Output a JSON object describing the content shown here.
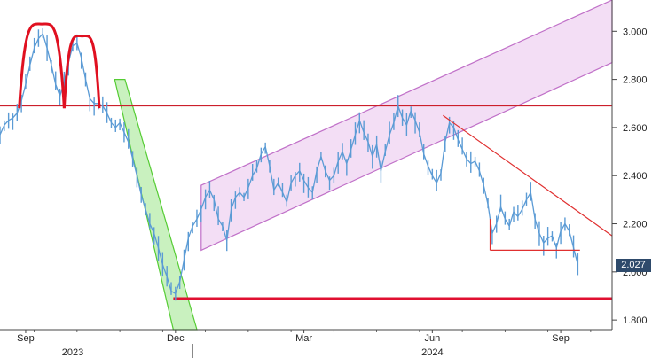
{
  "colors": {
    "price": "#5b9bd5",
    "resistance": "#cc1f2b",
    "head_shoulders": "#e01020",
    "triangle": "#e03030",
    "support": "#e01030",
    "down_channel_stroke": "#55cc33",
    "down_channel_fill": "#b7ecaa",
    "up_channel_stroke": "#c070c8",
    "up_channel_fill": "#f0d6f3",
    "last_label_bg": "#2e4a6b",
    "last_label_text": "#ffffff",
    "axis": "#444444"
  },
  "last_value_label": "2.027",
  "chart_data": {
    "type": "line",
    "x_unit": "month",
    "x_ticks": [
      {
        "label": "Sep",
        "x": 0.8
      },
      {
        "label": "Dec",
        "x": 4.3
      },
      {
        "label": "Mar",
        "x": 7.3
      },
      {
        "label": "Jun",
        "x": 10.3
      },
      {
        "label": "Sep",
        "x": 13.3
      }
    ],
    "year_labels": [
      {
        "label": "2023",
        "x": 1.9
      },
      {
        "label": "2024",
        "x": 10.3
      }
    ],
    "year_divider_x": 4.7,
    "ylim": [
      1.76,
      3.13
    ],
    "xlim": [
      0.2,
      14.5
    ],
    "y_ticks": [
      1.8,
      2.0,
      2.2,
      2.4,
      2.6,
      2.8,
      3.0
    ],
    "y_tick_labels": [
      "1.800",
      "2.000",
      "2.200",
      "2.400",
      "2.600",
      "2.800",
      "3.000"
    ],
    "series": [
      {
        "points": [
          [
            0.2,
            2.57
          ],
          [
            0.3,
            2.61
          ],
          [
            0.4,
            2.63
          ],
          [
            0.5,
            2.64
          ],
          [
            0.6,
            2.66
          ],
          [
            0.7,
            2.71
          ],
          [
            0.8,
            2.78
          ],
          [
            0.9,
            2.86
          ],
          [
            1.0,
            2.93
          ],
          [
            1.1,
            2.97
          ],
          [
            1.2,
            2.99
          ],
          [
            1.3,
            2.93
          ],
          [
            1.4,
            2.86
          ],
          [
            1.5,
            2.78
          ],
          [
            1.6,
            2.73
          ],
          [
            1.7,
            2.79
          ],
          [
            1.8,
            2.87
          ],
          [
            1.9,
            2.94
          ],
          [
            2.0,
            2.95
          ],
          [
            2.1,
            2.89
          ],
          [
            2.2,
            2.8
          ],
          [
            2.3,
            2.72
          ],
          [
            2.4,
            2.7
          ],
          [
            2.5,
            2.7
          ],
          [
            2.6,
            2.69
          ],
          [
            2.7,
            2.66
          ],
          [
            2.8,
            2.62
          ],
          [
            2.9,
            2.6
          ],
          [
            3.0,
            2.62
          ],
          [
            3.1,
            2.58
          ],
          [
            3.2,
            2.54
          ],
          [
            3.3,
            2.47
          ],
          [
            3.4,
            2.4
          ],
          [
            3.5,
            2.32
          ],
          [
            3.6,
            2.26
          ],
          [
            3.7,
            2.2
          ],
          [
            3.8,
            2.16
          ],
          [
            3.9,
            2.1
          ],
          [
            4.0,
            2.03
          ],
          [
            4.1,
            1.98
          ],
          [
            4.2,
            1.92
          ],
          [
            4.3,
            1.91
          ],
          [
            4.4,
            1.96
          ],
          [
            4.5,
            2.05
          ],
          [
            4.6,
            2.14
          ],
          [
            4.7,
            2.19
          ],
          [
            4.8,
            2.22
          ],
          [
            4.9,
            2.26
          ],
          [
            5.0,
            2.31
          ],
          [
            5.1,
            2.34
          ],
          [
            5.2,
            2.3
          ],
          [
            5.3,
            2.22
          ],
          [
            5.4,
            2.19
          ],
          [
            5.5,
            2.13
          ],
          [
            5.6,
            2.26
          ],
          [
            5.7,
            2.31
          ],
          [
            5.8,
            2.33
          ],
          [
            5.9,
            2.31
          ],
          [
            6.0,
            2.35
          ],
          [
            6.1,
            2.4
          ],
          [
            6.2,
            2.43
          ],
          [
            6.3,
            2.49
          ],
          [
            6.4,
            2.52
          ],
          [
            6.5,
            2.44
          ],
          [
            6.6,
            2.34
          ],
          [
            6.7,
            2.37
          ],
          [
            6.8,
            2.33
          ],
          [
            6.9,
            2.29
          ],
          [
            7.0,
            2.37
          ],
          [
            7.1,
            2.4
          ],
          [
            7.2,
            2.42
          ],
          [
            7.3,
            2.38
          ],
          [
            7.4,
            2.35
          ],
          [
            7.5,
            2.33
          ],
          [
            7.6,
            2.42
          ],
          [
            7.7,
            2.48
          ],
          [
            7.8,
            2.42
          ],
          [
            7.9,
            2.38
          ],
          [
            8.0,
            2.4
          ],
          [
            8.1,
            2.46
          ],
          [
            8.2,
            2.5
          ],
          [
            8.3,
            2.45
          ],
          [
            8.4,
            2.51
          ],
          [
            8.5,
            2.57
          ],
          [
            8.6,
            2.63
          ],
          [
            8.7,
            2.58
          ],
          [
            8.8,
            2.54
          ],
          [
            8.9,
            2.48
          ],
          [
            9.0,
            2.53
          ],
          [
            9.1,
            2.42
          ],
          [
            9.2,
            2.5
          ],
          [
            9.3,
            2.57
          ],
          [
            9.4,
            2.62
          ],
          [
            9.5,
            2.69
          ],
          [
            9.6,
            2.64
          ],
          [
            9.7,
            2.61
          ],
          [
            9.8,
            2.67
          ],
          [
            9.9,
            2.63
          ],
          [
            10.0,
            2.58
          ],
          [
            10.1,
            2.49
          ],
          [
            10.2,
            2.44
          ],
          [
            10.3,
            2.4
          ],
          [
            10.4,
            2.37
          ],
          [
            10.5,
            2.41
          ],
          [
            10.6,
            2.54
          ],
          [
            10.7,
            2.62
          ],
          [
            10.8,
            2.6
          ],
          [
            10.9,
            2.55
          ],
          [
            11.0,
            2.51
          ],
          [
            11.1,
            2.47
          ],
          [
            11.2,
            2.45
          ],
          [
            11.3,
            2.46
          ],
          [
            11.4,
            2.42
          ],
          [
            11.5,
            2.36
          ],
          [
            11.6,
            2.28
          ],
          [
            11.7,
            2.16
          ],
          [
            11.8,
            2.2
          ],
          [
            11.9,
            2.27
          ],
          [
            12.0,
            2.22
          ],
          [
            12.1,
            2.19
          ],
          [
            12.2,
            2.25
          ],
          [
            12.3,
            2.23
          ],
          [
            12.4,
            2.26
          ],
          [
            12.5,
            2.3
          ],
          [
            12.6,
            2.33
          ],
          [
            12.7,
            2.22
          ],
          [
            12.8,
            2.16
          ],
          [
            12.9,
            2.12
          ],
          [
            13.0,
            2.14
          ],
          [
            13.1,
            2.15
          ],
          [
            13.2,
            2.1
          ],
          [
            13.3,
            2.17
          ],
          [
            13.4,
            2.2
          ],
          [
            13.5,
            2.17
          ],
          [
            13.6,
            2.1
          ],
          [
            13.7,
            2.03
          ]
        ]
      }
    ],
    "annotations": {
      "resistance_line": {
        "y": 2.69,
        "x_start": 0.2,
        "x_end": 14.5
      },
      "support_line": {
        "y": 1.89,
        "x_start": 4.25,
        "x_end": 14.5
      },
      "head_shoulders": [
        {
          "start": [
            0.65,
            2.68
          ],
          "peak": [
            1.18,
            3.03
          ],
          "end": [
            1.7,
            2.68
          ]
        },
        {
          "start": [
            1.7,
            2.68
          ],
          "peak": [
            2.12,
            2.98
          ],
          "end": [
            2.52,
            2.68
          ]
        }
      ],
      "down_channel": [
        [
          2.88,
          2.8
        ],
        [
          3.12,
          2.8
        ],
        [
          4.8,
          1.76
        ],
        [
          4.25,
          1.76
        ]
      ],
      "up_channel": [
        [
          4.9,
          2.36
        ],
        [
          14.5,
          3.13
        ],
        [
          14.5,
          2.87
        ],
        [
          4.9,
          2.09
        ]
      ],
      "descending_triangle": {
        "top": [
          [
            10.55,
            2.65
          ],
          [
            14.5,
            2.15
          ]
        ],
        "left_drop": [
          [
            11.65,
            2.09
          ]
        ],
        "base": [
          [
            11.65,
            2.09
          ],
          [
            13.75,
            2.09
          ]
        ]
      }
    }
  }
}
